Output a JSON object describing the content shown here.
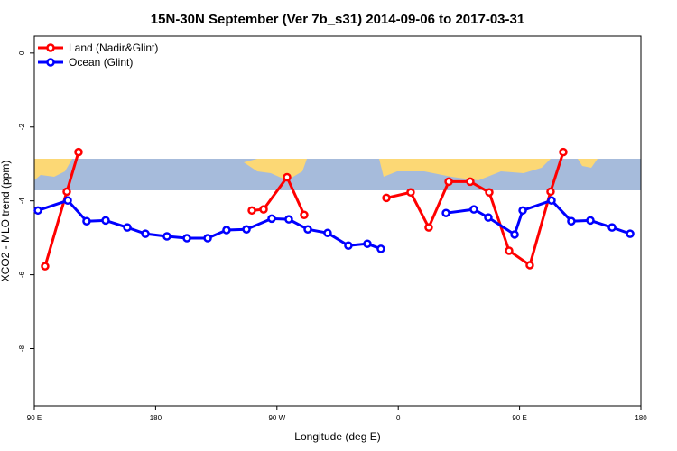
{
  "chart_data": {
    "type": "line",
    "title": "15N-30N September (Ver 7b_s31)   2014-09-06 to 2017-03-31",
    "x_label": "Longitude (deg E)",
    "y_label": "XCO2 - MLO trend (ppm)",
    "xlim": [
      90,
      540
    ],
    "xticks": [
      {
        "value": 90,
        "label": "90 E"
      },
      180,
      {
        "value": 270,
        "label": "90 W"
      },
      {
        "value": 360,
        "label": "0"
      },
      {
        "value": 450,
        "label": "90 E"
      },
      {
        "value": 540,
        "label": "180"
      }
    ],
    "ylim": [
      -9.55,
      0.46
    ],
    "yticks": [
      0,
      -2,
      -4,
      -6,
      -8
    ],
    "legend": "top-left",
    "series": [
      {
        "name": "Land (Nadir&Glint)",
        "color": "#ff0000",
        "x": [
          98.0,
          114.1,
          122.8,
          null,
          251.4,
          260.1,
          277.5,
          290.2,
          null,
          351.2,
          369.2,
          382.6,
          397.4,
          413.4,
          427.5,
          442.2,
          457.6,
          473.0,
          482.4
        ],
        "values": [
          -5.77,
          -3.75,
          -2.68,
          null,
          -4.26,
          -4.23,
          -3.36,
          -4.38,
          null,
          -3.92,
          -3.77,
          -4.72,
          -3.48,
          -3.48,
          -3.77,
          -5.35,
          -5.74,
          -3.75,
          -2.68
        ]
      },
      {
        "name": "Ocean (Glint)",
        "color": "#0000ff",
        "x": [
          92.7,
          114.8,
          128.8,
          142.9,
          159.0,
          172.4,
          188.4,
          203.2,
          218.6,
          232.6,
          247.4,
          266.1,
          278.8,
          292.9,
          307.6,
          323.0,
          337.1,
          347.1,
          null,
          395.4,
          416.1,
          426.8,
          446.3,
          452.3,
          473.7,
          488.4,
          502.5,
          518.6,
          532.0
        ],
        "values": [
          -4.26,
          -3.99,
          -4.55,
          -4.53,
          -4.72,
          -4.89,
          -4.96,
          -5.01,
          -5.01,
          -4.79,
          -4.77,
          -4.48,
          -4.5,
          -4.77,
          -4.87,
          -5.21,
          -5.16,
          -5.3,
          null,
          -4.33,
          -4.23,
          -4.45,
          -4.91,
          -4.26,
          -3.99,
          -4.55,
          -4.53,
          -4.72,
          -4.89
        ]
      }
    ]
  }
}
